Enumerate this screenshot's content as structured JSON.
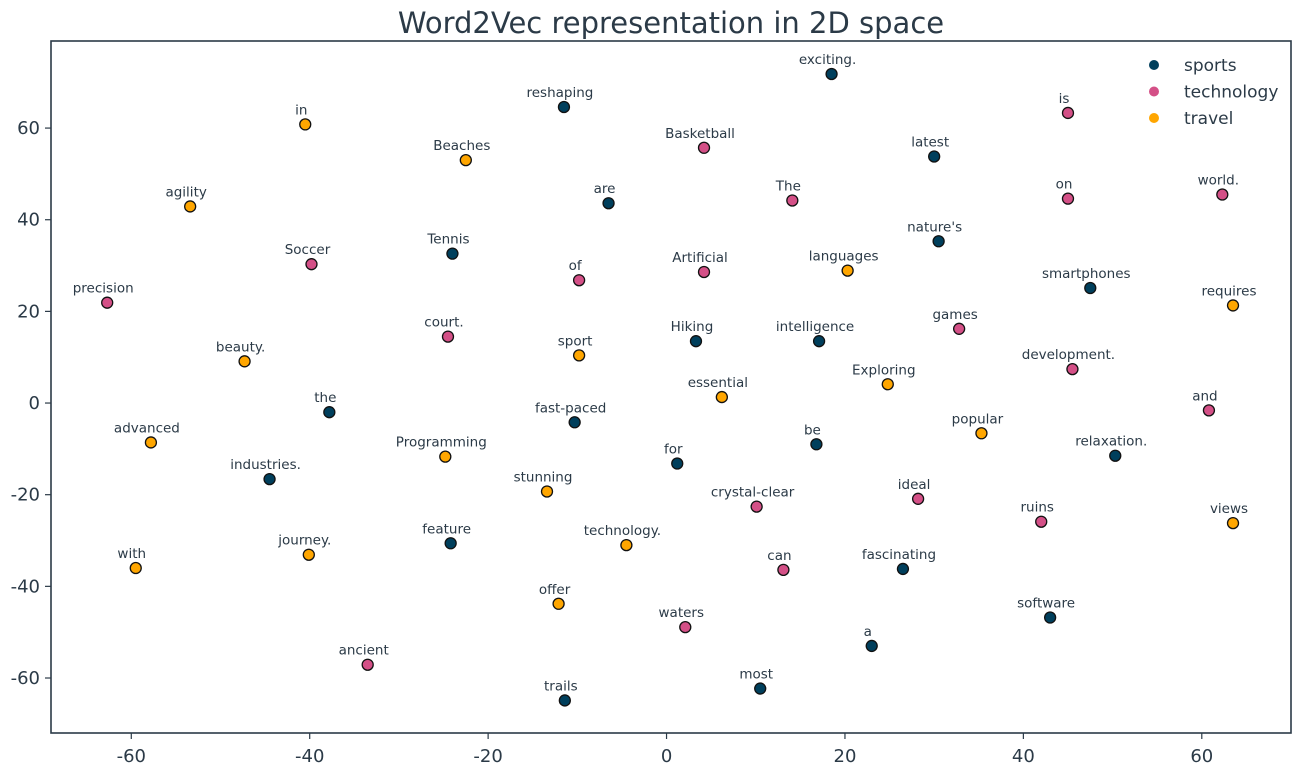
{
  "chart_data": {
    "type": "scatter",
    "title": "Word2Vec representation in 2D space",
    "xlabel": "",
    "ylabel": "",
    "xlim": [
      -69,
      70
    ],
    "ylim": [
      -72,
      79
    ],
    "xticks": [
      -60,
      -40,
      -20,
      0,
      20,
      40,
      60
    ],
    "yticks": [
      -60,
      -40,
      -20,
      0,
      20,
      40,
      60
    ],
    "xtick_labels": [
      "-60",
      "-40",
      "-20",
      "0",
      "20",
      "40",
      "60"
    ],
    "ytick_labels": [
      "-60",
      "-40",
      "-20",
      "0",
      "20",
      "40",
      "60"
    ],
    "grid": false,
    "legend_position": "top-right",
    "series": [
      {
        "name": "sports",
        "color": "#003f5c",
        "points": [
          {
            "label": "exciting.",
            "x": 18.5,
            "y": 71.8
          },
          {
            "label": "reshaping",
            "x": -11.5,
            "y": 64.6
          },
          {
            "label": "latest",
            "x": 30.0,
            "y": 53.8
          },
          {
            "label": "are",
            "x": -6.5,
            "y": 43.6
          },
          {
            "label": "Tennis",
            "x": -24.0,
            "y": 32.6
          },
          {
            "label": "nature's",
            "x": 30.5,
            "y": 35.3
          },
          {
            "label": "smartphones",
            "x": 47.5,
            "y": 25.1
          },
          {
            "label": "Hiking",
            "x": 3.3,
            "y": 13.5
          },
          {
            "label": "intelligence",
            "x": 17.1,
            "y": 13.5
          },
          {
            "label": "the",
            "x": -37.8,
            "y": -2.0
          },
          {
            "label": "fast-paced",
            "x": -10.3,
            "y": -4.2
          },
          {
            "label": "be",
            "x": 16.8,
            "y": -9.0
          },
          {
            "label": "for",
            "x": 1.2,
            "y": -13.2
          },
          {
            "label": "relaxation.",
            "x": 50.3,
            "y": -11.5
          },
          {
            "label": "industries.",
            "x": -44.5,
            "y": -16.6
          },
          {
            "label": "feature",
            "x": -24.2,
            "y": -30.6
          },
          {
            "label": "fascinating",
            "x": 26.5,
            "y": -36.2
          },
          {
            "label": "software",
            "x": 43.0,
            "y": -46.8
          },
          {
            "label": "a",
            "x": 23.0,
            "y": -53.0
          },
          {
            "label": "most",
            "x": 10.5,
            "y": -62.3
          },
          {
            "label": "trails",
            "x": -11.4,
            "y": -64.9
          }
        ]
      },
      {
        "name": "technology",
        "color": "#d45087",
        "points": [
          {
            "label": "is",
            "x": 45.0,
            "y": 63.3
          },
          {
            "label": "Basketball",
            "x": 4.2,
            "y": 55.7
          },
          {
            "label": "The",
            "x": 14.1,
            "y": 44.2
          },
          {
            "label": "on",
            "x": 45.0,
            "y": 44.6
          },
          {
            "label": "world.",
            "x": 62.3,
            "y": 45.5
          },
          {
            "label": "Soccer",
            "x": -39.8,
            "y": 30.3
          },
          {
            "label": "Artificial",
            "x": 4.2,
            "y": 28.6
          },
          {
            "label": "of",
            "x": -9.8,
            "y": 26.8
          },
          {
            "label": "precision",
            "x": -62.7,
            "y": 21.9
          },
          {
            "label": "games",
            "x": 32.8,
            "y": 16.2
          },
          {
            "label": "court.",
            "x": -24.5,
            "y": 14.5
          },
          {
            "label": "development.",
            "x": 45.5,
            "y": 7.4
          },
          {
            "label": "and",
            "x": 60.8,
            "y": -1.6
          },
          {
            "label": "ideal",
            "x": 28.2,
            "y": -20.9
          },
          {
            "label": "crystal-clear",
            "x": 10.1,
            "y": -22.6
          },
          {
            "label": "ruins",
            "x": 42.0,
            "y": -25.9
          },
          {
            "label": "can",
            "x": 13.1,
            "y": -36.4
          },
          {
            "label": "waters",
            "x": 2.1,
            "y": -48.9
          },
          {
            "label": "ancient",
            "x": -33.5,
            "y": -57.1
          }
        ]
      },
      {
        "name": "travel",
        "color": "#ffa600",
        "points": [
          {
            "label": "in",
            "x": -40.5,
            "y": 60.8
          },
          {
            "label": "Beaches",
            "x": -22.5,
            "y": 53.0
          },
          {
            "label": "agility",
            "x": -53.4,
            "y": 42.9
          },
          {
            "label": "languages",
            "x": 20.3,
            "y": 28.9
          },
          {
            "label": "requires",
            "x": 63.5,
            "y": 21.3
          },
          {
            "label": "beauty.",
            "x": -47.3,
            "y": 9.1
          },
          {
            "label": "sport",
            "x": -9.8,
            "y": 10.4
          },
          {
            "label": "Exploring",
            "x": 24.8,
            "y": 4.1
          },
          {
            "label": "essential",
            "x": 6.2,
            "y": 1.3
          },
          {
            "label": "popular",
            "x": 35.3,
            "y": -6.6
          },
          {
            "label": "advanced",
            "x": -57.8,
            "y": -8.6
          },
          {
            "label": "Programming",
            "x": -24.8,
            "y": -11.7
          },
          {
            "label": "stunning",
            "x": -13.4,
            "y": -19.3
          },
          {
            "label": "views",
            "x": 63.5,
            "y": -26.2
          },
          {
            "label": "journey.",
            "x": -40.1,
            "y": -33.1
          },
          {
            "label": "technology.",
            "x": -4.5,
            "y": -31.0
          },
          {
            "label": "with",
            "x": -59.5,
            "y": -36.0
          },
          {
            "label": "offer",
            "x": -12.1,
            "y": -43.8
          }
        ]
      }
    ]
  },
  "style": {
    "text_color": "#2b3a47",
    "axes_color": "#2b3a47",
    "marker_edge": "#111111"
  }
}
